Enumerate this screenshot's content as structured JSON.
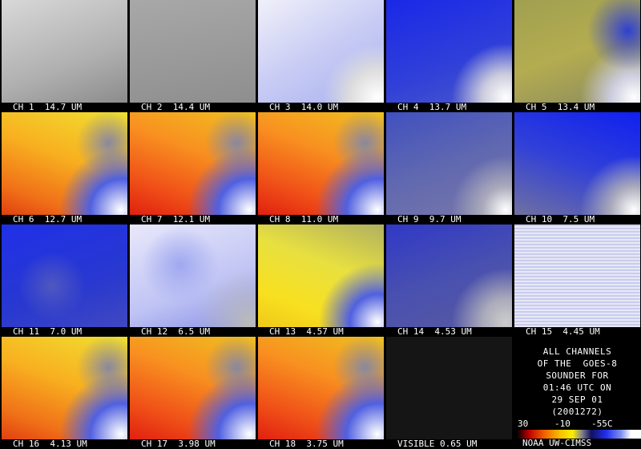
{
  "panels": [
    {
      "label": "CH 1  14.7 UM"
    },
    {
      "label": "CH 2  14.4 UM"
    },
    {
      "label": "CH 3  14.0 UM"
    },
    {
      "label": "CH 4  13.7 UM"
    },
    {
      "label": "CH 5  13.4 UM"
    },
    {
      "label": "CH 6  12.7 UM"
    },
    {
      "label": "CH 7  12.1 UM"
    },
    {
      "label": "CH 8  11.0 UM"
    },
    {
      "label": "CH 9  9.7 UM"
    },
    {
      "label": "CH 10  7.5 UM"
    },
    {
      "label": "CH 11  7.0 UM"
    },
    {
      "label": "CH 12  6.5 UM"
    },
    {
      "label": "CH 13  4.57 UM"
    },
    {
      "label": "CH 14  4.53 UM"
    },
    {
      "label": "CH 15  4.45 UM"
    },
    {
      "label": "CH 16  4.13 UM"
    },
    {
      "label": "CH 17  3.98 UM"
    },
    {
      "label": "CH 18  3.75 UM"
    },
    {
      "label": "VISIBLE 0.65 UM"
    }
  ],
  "info": {
    "lines": [
      "ALL CHANNELS",
      "OF THE  GOES-8",
      "SOUNDER FOR",
      "01:46 UTC ON",
      "29 SEP 01",
      "(2001272)"
    ]
  },
  "colorbar": {
    "labels": [
      "30",
      "-10",
      "-55C"
    ]
  },
  "credit": "NOAA UW-CIMSS"
}
